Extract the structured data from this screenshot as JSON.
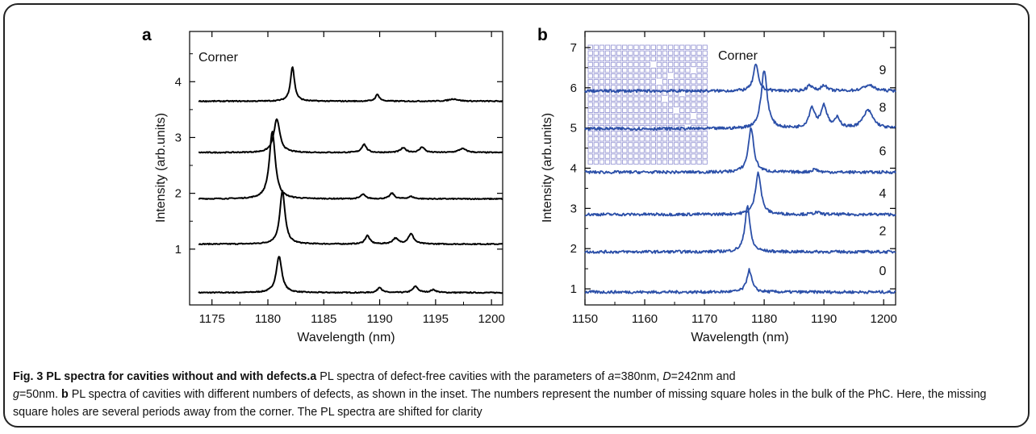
{
  "chart_data": [
    {
      "panel": "a",
      "type": "line",
      "annotation": "Corner",
      "xlabel": "Wavelength (nm)",
      "ylabel": "Intensity (arb.units)",
      "xlim": [
        1173,
        1201
      ],
      "ylim": [
        0,
        4.9
      ],
      "xticks": [
        "1175",
        "1180",
        "1185",
        "1190",
        "1195",
        "1200"
      ],
      "yticks": [
        "1",
        "2",
        "3",
        "4"
      ],
      "line_color": "#000000",
      "series": [
        {
          "baseline": 0.22,
          "peaks": [
            [
              1181.0,
              0.65,
              0.3
            ],
            [
              1190.0,
              0.1,
              0.22
            ],
            [
              1193.2,
              0.11,
              0.28
            ],
            [
              1194.8,
              0.05,
              0.3
            ]
          ]
        },
        {
          "baseline": 1.09,
          "peaks": [
            [
              1181.3,
              0.95,
              0.28
            ],
            [
              1188.9,
              0.15,
              0.25
            ],
            [
              1191.4,
              0.1,
              0.3
            ],
            [
              1192.8,
              0.18,
              0.3
            ]
          ]
        },
        {
          "baseline": 1.9,
          "peaks": [
            [
              1180.4,
              1.2,
              0.32
            ],
            [
              1188.5,
              0.08,
              0.25
            ],
            [
              1191.1,
              0.1,
              0.25
            ],
            [
              1192.8,
              0.04,
              0.3
            ]
          ]
        },
        {
          "baseline": 2.73,
          "peaks": [
            [
              1180.8,
              0.6,
              0.32
            ],
            [
              1188.6,
              0.15,
              0.25
            ],
            [
              1192.1,
              0.08,
              0.3
            ],
            [
              1193.8,
              0.1,
              0.25
            ],
            [
              1197.4,
              0.07,
              0.4
            ]
          ]
        },
        {
          "baseline": 3.65,
          "peaks": [
            [
              1182.2,
              0.62,
              0.22
            ],
            [
              1189.8,
              0.12,
              0.22
            ],
            [
              1196.6,
              0.04,
              0.5
            ]
          ]
        }
      ]
    },
    {
      "panel": "b",
      "type": "line",
      "annotation": "Corner",
      "xlabel": "Wavelength (nm)",
      "ylabel": "Intensity (arb.units)",
      "xlim": [
        1150,
        1202
      ],
      "ylim": [
        0.6,
        7.4
      ],
      "xticks": [
        "1150",
        "1160",
        "1170",
        "1180",
        "1190",
        "1200"
      ],
      "yticks": [
        "1",
        "2",
        "3",
        "4",
        "5",
        "6",
        "7"
      ],
      "line_color": "#2b4fa8",
      "inset_color": "#9a9ad6",
      "series": [
        {
          "name": "0",
          "baseline": 0.92,
          "peaks": [
            [
              1177.5,
              0.55,
              0.5
            ]
          ]
        },
        {
          "name": "2",
          "baseline": 1.92,
          "peaks": [
            [
              1177.2,
              1.15,
              0.5
            ]
          ]
        },
        {
          "name": "4",
          "baseline": 2.85,
          "peaks": [
            [
              1179.0,
              1.05,
              0.55
            ],
            [
              1188.8,
              0.05,
              0.6
            ]
          ]
        },
        {
          "name": "6",
          "baseline": 3.9,
          "peaks": [
            [
              1177.8,
              1.1,
              0.55
            ],
            [
              1188.5,
              0.08,
              0.5
            ]
          ]
        },
        {
          "name": "8",
          "baseline": 4.98,
          "peaks": [
            [
              1180.0,
              1.45,
              0.6
            ],
            [
              1188.0,
              0.5,
              0.6
            ],
            [
              1190.0,
              0.55,
              0.6
            ],
            [
              1192.3,
              0.25,
              0.5
            ],
            [
              1197.4,
              0.45,
              1.0
            ]
          ]
        },
        {
          "name": "9",
          "baseline": 5.92,
          "peaks": [
            [
              1178.6,
              0.65,
              0.5
            ],
            [
              1187.6,
              0.15,
              0.5
            ],
            [
              1190.0,
              0.15,
              0.5
            ],
            [
              1197.5,
              0.15,
              1.0
            ]
          ]
        }
      ]
    }
  ],
  "caption": {
    "title": "Fig. 3 PL spectra for cavities without and with defects.",
    "a_label": "a",
    "a_text1": " PL spectra of defect-free cavities with the parameters of ",
    "a_var": "a",
    "a_val": "=380nm, ",
    "D_var": "D",
    "D_val": "=242nm and",
    "g_var": "g",
    "g_val": "=50nm. ",
    "b_label": "b",
    "b_text": " PL spectra of cavities with different numbers of defects, as shown in the inset. The numbers represent the number of missing square holes in the bulk of the PhC. Here, the missing square holes are several periods away from the corner. The PL spectra are shifted for clarity"
  }
}
